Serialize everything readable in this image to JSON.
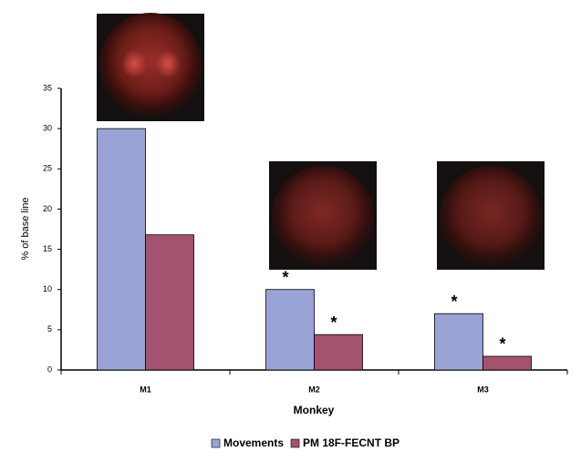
{
  "chart_data": {
    "type": "bar",
    "categories": [
      "M1",
      "M2",
      "M3"
    ],
    "series": [
      {
        "name": "Movements",
        "color": "#99a3d6",
        "values": [
          30,
          10,
          7
        ],
        "marks": [
          null,
          "*",
          "*"
        ]
      },
      {
        "name": "PM 18F-FECNT BP",
        "color": "#a3526f",
        "values": [
          16.8,
          4.4,
          1.7
        ],
        "marks": [
          null,
          "*",
          "*"
        ]
      }
    ],
    "ylim": [
      0,
      35
    ],
    "yticks": [
      0,
      5,
      10,
      15,
      20,
      25,
      30,
      35
    ],
    "ylabel": "% of base line",
    "xlabel": "Monkey",
    "legend": "bottom"
  }
}
